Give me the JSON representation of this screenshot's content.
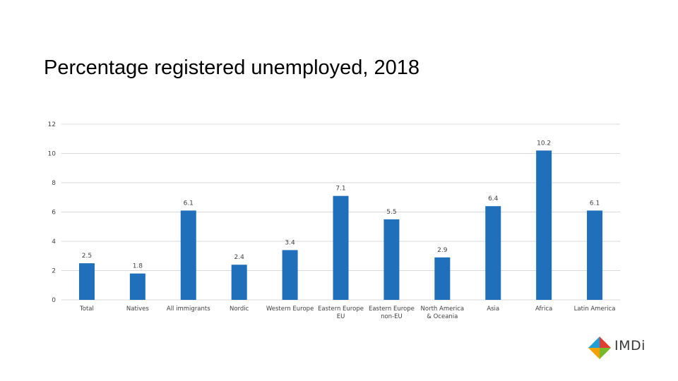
{
  "chart_data": {
    "type": "bar",
    "title": "Percentage registered unemployed, 2018",
    "xlabel": "",
    "ylabel": "",
    "categories": [
      [
        "Total"
      ],
      [
        "Natives"
      ],
      [
        "All immigrants"
      ],
      [
        "Nordic"
      ],
      [
        "Western Europe"
      ],
      [
        "Eastern Europe",
        "EU"
      ],
      [
        "Eastern Europe",
        "non-EU"
      ],
      [
        "North America",
        "& Oceania"
      ],
      [
        "Asia"
      ],
      [
        "Africa"
      ],
      [
        "Latin America"
      ]
    ],
    "values": [
      2.5,
      1.8,
      6.1,
      2.4,
      3.4,
      7.1,
      5.5,
      2.9,
      6.4,
      10.2,
      6.1
    ],
    "data_labels": [
      "2.5",
      "1.8",
      "6.1",
      "2.4",
      "3.4",
      "7.1",
      "5.5",
      "2.9",
      "6.4",
      "10.2",
      "6.1"
    ],
    "yticks": [
      0,
      2,
      4,
      6,
      8,
      10,
      12
    ],
    "ylim": [
      0,
      12
    ],
    "grid": true,
    "legend": "none",
    "bar_color": "#1f6fbb",
    "grid_color": "#d9d9d9"
  },
  "logo": {
    "text": "IMDi",
    "colors": [
      "#e03c31",
      "#7ab929",
      "#f2a100",
      "#1f9fd6"
    ]
  }
}
